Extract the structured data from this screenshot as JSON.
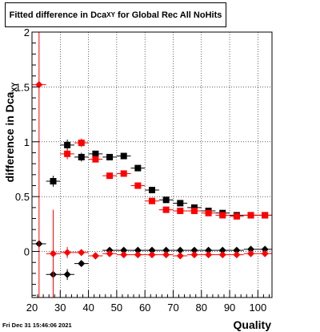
{
  "title": {
    "main": "Fitted difference in Dca",
    "sub": "XY",
    "tail": " for Global Rec All NoHits"
  },
  "timestamp": "Fri Dec 31 15:46:06 2021",
  "chart_data": {
    "type": "scatter",
    "title": "Fitted difference in Dca_XY for Global Rec All NoHits",
    "xlabel": "Quality",
    "ylabel": "difference in Dca_XY",
    "ylabel_main": "difference in Dca",
    "ylabel_sub": "XY",
    "xlim": [
      20,
      105
    ],
    "ylim": [
      -0.42,
      2.0
    ],
    "xticks": [
      20,
      30,
      40,
      50,
      60,
      70,
      80,
      90,
      100
    ],
    "yticks": [
      0,
      0.5,
      1,
      1.5,
      2
    ],
    "ytick_labels": [
      "0",
      "0.5",
      "1",
      "1.5",
      "2"
    ],
    "grid": true,
    "colors": {
      "black": "#000000",
      "red": "#ff0000"
    },
    "series": [
      {
        "color": "#000000",
        "marker": "square",
        "bin_half_width": 2.5,
        "points": [
          {
            "x": 27.5,
            "y": 0.64,
            "err": 0.05
          },
          {
            "x": 32.5,
            "y": 0.97,
            "err": 0.05
          },
          {
            "x": 37.5,
            "y": 0.86,
            "err": 0.04
          },
          {
            "x": 42.5,
            "y": 0.89,
            "err": 0.02
          },
          {
            "x": 47.5,
            "y": 0.86,
            "err": 0.02
          },
          {
            "x": 52.5,
            "y": 0.87,
            "err": 0.02
          },
          {
            "x": 57.5,
            "y": 0.76,
            "err": 0.02
          },
          {
            "x": 62.5,
            "y": 0.56,
            "err": 0.015
          },
          {
            "x": 67.5,
            "y": 0.47,
            "err": 0.01
          },
          {
            "x": 72.5,
            "y": 0.44,
            "err": 0.01
          },
          {
            "x": 77.5,
            "y": 0.4,
            "err": 0.01
          },
          {
            "x": 82.5,
            "y": 0.37,
            "err": 0.01
          },
          {
            "x": 87.5,
            "y": 0.35,
            "err": 0.01
          },
          {
            "x": 92.5,
            "y": 0.33,
            "err": 0.01
          },
          {
            "x": 97.5,
            "y": 0.33,
            "err": 0.01
          },
          {
            "x": 102.5,
            "y": 0.33,
            "err": 0.01
          }
        ]
      },
      {
        "color": "#ff0000",
        "marker": "square",
        "bin_half_width": 2.5,
        "points": [
          {
            "x": 32.5,
            "y": 0.89,
            "err": 0.05
          },
          {
            "x": 37.5,
            "y": 0.99,
            "err": 0.04
          },
          {
            "x": 42.5,
            "y": 0.84,
            "err": 0.02
          },
          {
            "x": 47.5,
            "y": 0.69,
            "err": 0.02
          },
          {
            "x": 52.5,
            "y": 0.71,
            "err": 0.02
          },
          {
            "x": 57.5,
            "y": 0.6,
            "err": 0.02
          },
          {
            "x": 62.5,
            "y": 0.46,
            "err": 0.015
          },
          {
            "x": 67.5,
            "y": 0.38,
            "err": 0.01
          },
          {
            "x": 72.5,
            "y": 0.37,
            "err": 0.01
          },
          {
            "x": 77.5,
            "y": 0.37,
            "err": 0.01
          },
          {
            "x": 82.5,
            "y": 0.35,
            "err": 0.01
          },
          {
            "x": 87.5,
            "y": 0.33,
            "err": 0.01
          },
          {
            "x": 92.5,
            "y": 0.32,
            "err": 0.01
          },
          {
            "x": 97.5,
            "y": 0.33,
            "err": 0.01
          },
          {
            "x": 102.5,
            "y": 0.33,
            "err": 0.01
          }
        ]
      },
      {
        "color": "#000000",
        "marker": "diamond",
        "bin_half_width": 2.5,
        "points": [
          {
            "x": 22.5,
            "y": 0.07,
            "err": 0.02
          },
          {
            "x": 27.5,
            "y": -0.21,
            "err": 0.05
          },
          {
            "x": 32.5,
            "y": -0.21,
            "err": 0.05
          },
          {
            "x": 37.5,
            "y": -0.11,
            "err": 0.02
          },
          {
            "x": 42.5,
            "y": -0.04,
            "err": 0.01
          },
          {
            "x": 47.5,
            "y": 0.01,
            "err": 0.01
          },
          {
            "x": 52.5,
            "y": 0.01,
            "err": 0.01
          },
          {
            "x": 57.5,
            "y": 0.01,
            "err": 0.01
          },
          {
            "x": 62.5,
            "y": 0.01,
            "err": 0.01
          },
          {
            "x": 67.5,
            "y": 0.01,
            "err": 0.01
          },
          {
            "x": 72.5,
            "y": 0.01,
            "err": 0.01
          },
          {
            "x": 77.5,
            "y": 0.01,
            "err": 0.01
          },
          {
            "x": 82.5,
            "y": 0.01,
            "err": 0.01
          },
          {
            "x": 87.5,
            "y": 0.01,
            "err": 0.01
          },
          {
            "x": 92.5,
            "y": 0.01,
            "err": 0.01
          },
          {
            "x": 97.5,
            "y": 0.02,
            "err": 0.01
          },
          {
            "x": 102.5,
            "y": 0.02,
            "err": 0.01
          }
        ]
      },
      {
        "color": "#ff0000",
        "marker": "diamond",
        "bin_half_width": 2.5,
        "points": [
          {
            "x": 22.5,
            "y": 1.52,
            "err": 2.0
          },
          {
            "x": 27.5,
            "y": -0.02,
            "err": 0.4
          },
          {
            "x": 32.5,
            "y": -0.01,
            "err": 0.05
          },
          {
            "x": 37.5,
            "y": -0.01,
            "err": 0.02
          },
          {
            "x": 42.5,
            "y": -0.04,
            "err": 0.01
          },
          {
            "x": 47.5,
            "y": -0.02,
            "err": 0.01
          },
          {
            "x": 52.5,
            "y": -0.03,
            "err": 0.01
          },
          {
            "x": 57.5,
            "y": -0.03,
            "err": 0.01
          },
          {
            "x": 62.5,
            "y": -0.03,
            "err": 0.01
          },
          {
            "x": 67.5,
            "y": -0.03,
            "err": 0.01
          },
          {
            "x": 72.5,
            "y": -0.04,
            "err": 0.01
          },
          {
            "x": 77.5,
            "y": -0.03,
            "err": 0.01
          },
          {
            "x": 82.5,
            "y": -0.03,
            "err": 0.01
          },
          {
            "x": 87.5,
            "y": -0.03,
            "err": 0.01
          },
          {
            "x": 92.5,
            "y": -0.03,
            "err": 0.01
          },
          {
            "x": 97.5,
            "y": -0.02,
            "err": 0.01
          },
          {
            "x": 102.5,
            "y": -0.02,
            "err": 0.01
          }
        ]
      }
    ]
  }
}
